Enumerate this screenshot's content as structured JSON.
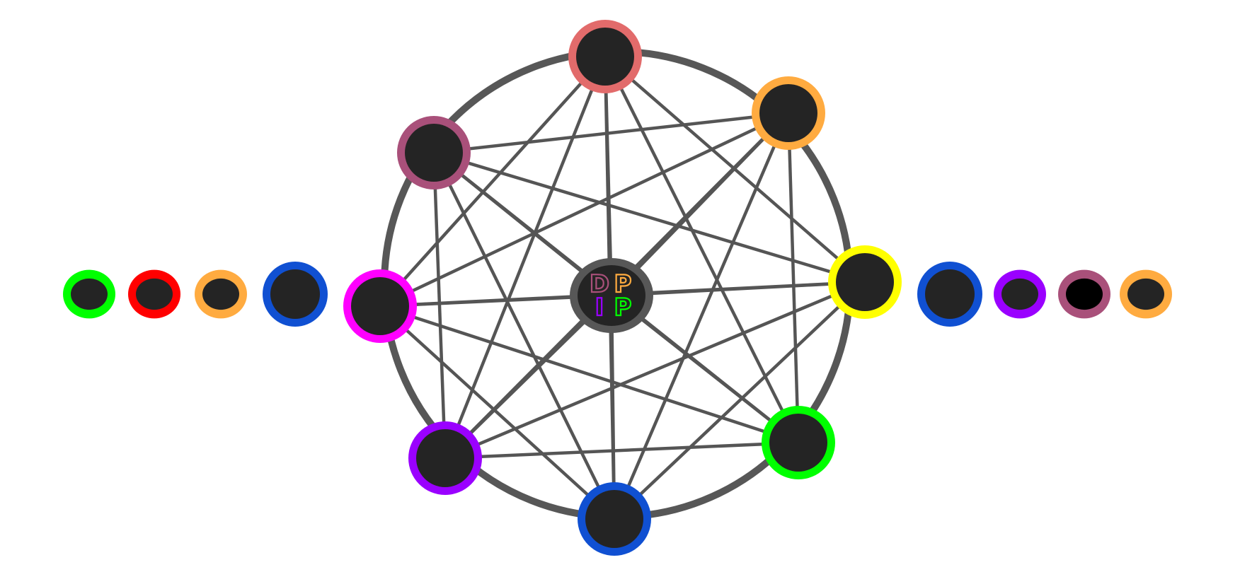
{
  "colors": {
    "edge": "#555555",
    "ring": "#575757",
    "node_fill": "#242424",
    "queue_node_fill_dark": "#000000",
    "background": "#ffffff"
  },
  "logo": {
    "letters": [
      {
        "text": "D",
        "color": "#a9507a"
      },
      {
        "text": "P",
        "color": "#ffab40"
      },
      {
        "text": "I",
        "color": "#9a00ff"
      },
      {
        "text": "P",
        "color": "#00ff00"
      }
    ],
    "border_color": "#575757",
    "fill": "#242424"
  },
  "ring_nodes": [
    {
      "id": "top",
      "color": "#e26b6b"
    },
    {
      "id": "upper-right",
      "color": "#ffab40"
    },
    {
      "id": "right",
      "color": "#ffff00"
    },
    {
      "id": "lower-right",
      "color": "#00ff00"
    },
    {
      "id": "bottom",
      "color": "#1050d2"
    },
    {
      "id": "lower-left",
      "color": "#9a00ff"
    },
    {
      "id": "left",
      "color": "#ff00ff"
    },
    {
      "id": "upper-left",
      "color": "#a9507a"
    }
  ],
  "left_queue": [
    {
      "id": "green",
      "color": "#00ff00",
      "size": "small"
    },
    {
      "id": "red",
      "color": "#ff0000",
      "size": "small"
    },
    {
      "id": "orange",
      "color": "#ffab40",
      "size": "small"
    },
    {
      "id": "blue",
      "color": "#1050d2",
      "size": "large"
    }
  ],
  "right_queue": [
    {
      "id": "blue",
      "color": "#1050d2",
      "size": "large"
    },
    {
      "id": "purple",
      "color": "#9a00ff",
      "size": "small"
    },
    {
      "id": "mauve",
      "color": "#a9507a",
      "size": "small",
      "dark": true
    },
    {
      "id": "orange",
      "color": "#ffab40",
      "size": "small"
    }
  ],
  "connections": "complete-graph-plus-center"
}
